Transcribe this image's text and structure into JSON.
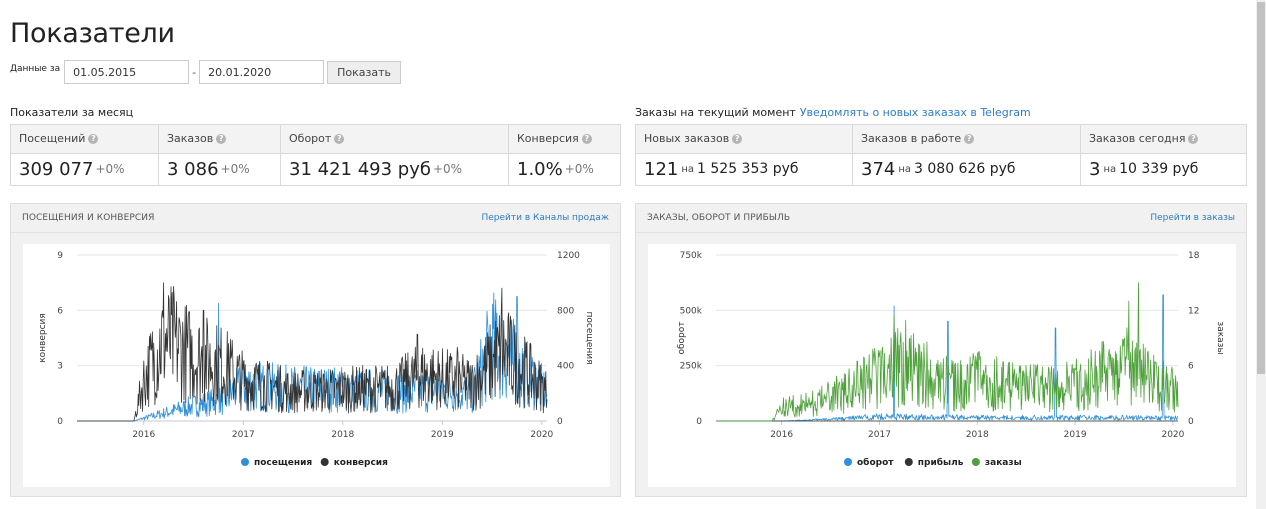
{
  "page": {
    "title": "Показатели"
  },
  "filter": {
    "label": "Данные за",
    "from": "01.05.2015",
    "separator": "-",
    "to": "20.01.2020",
    "button": "Показать"
  },
  "monthly": {
    "title": "Показатели за месяц",
    "items": [
      {
        "label": "Посещений",
        "value": "309 077",
        "delta": "+0%"
      },
      {
        "label": "Заказов",
        "value": "3 086",
        "delta": "+0%"
      },
      {
        "label": "Оборот",
        "value": "31 421 493 руб",
        "delta": "+0%"
      },
      {
        "label": "Конверсия",
        "value": "1.0%",
        "delta": "+0%"
      }
    ]
  },
  "current": {
    "title": "Заказы на текущий момент",
    "link": "Уведомлять о новых заказах в Telegram",
    "items": [
      {
        "label": "Новых заказов",
        "count": "121",
        "on": "на",
        "sum": "1 525 353 руб"
      },
      {
        "label": "Заказов в работе",
        "count": "374",
        "on": "на",
        "sum": "3 080 626 руб"
      },
      {
        "label": "Заказов сегодня",
        "count": "3",
        "on": "на",
        "sum": "10 339 руб"
      }
    ]
  },
  "panels": [
    {
      "title": "ПОСЕЩЕНИЯ И КОНВЕРСИЯ",
      "link": "Перейти в Каналы продаж"
    },
    {
      "title": "ЗАКАЗЫ, ОБОРОТ И ПРИБЫЛЬ",
      "link": "Перейти в заказы"
    }
  ],
  "chart_data": [
    {
      "type": "line",
      "x_range": [
        "2015-05-01",
        "2020-01-20"
      ],
      "x_ticks": [
        "2016",
        "2017",
        "2018",
        "2019",
        "2020"
      ],
      "y_left": {
        "label": "конверсия",
        "range": [
          0,
          9
        ],
        "ticks": [
          "0",
          "3",
          "6",
          "9"
        ]
      },
      "y_right": {
        "label": "посещения",
        "range": [
          0,
          1200
        ],
        "ticks": [
          "0",
          "400",
          "800",
          "1200"
        ]
      },
      "legend_position": "bottom",
      "series": [
        {
          "name": "посещения",
          "axis": "right",
          "color": "#2f8fd8",
          "envelope": [
            [
              2015.33,
              0
            ],
            [
              2015.9,
              0
            ],
            [
              2016.0,
              20
            ],
            [
              2016.5,
              110
            ],
            [
              2016.8,
              150
            ],
            [
              2017.0,
              260
            ],
            [
              2017.5,
              230
            ],
            [
              2018.0,
              230
            ],
            [
              2018.5,
              210
            ],
            [
              2019.0,
              220
            ],
            [
              2019.3,
              200
            ],
            [
              2019.5,
              550
            ],
            [
              2019.8,
              380
            ],
            [
              2020.05,
              200
            ]
          ],
          "peaks": [
            [
              2016.75,
              850
            ],
            [
              2019.55,
              780
            ],
            [
              2019.75,
              900
            ],
            [
              2017.15,
              300
            ],
            [
              2018.05,
              320
            ]
          ]
        },
        {
          "name": "конверсия",
          "axis": "left",
          "color": "#333333",
          "envelope": [
            [
              2015.33,
              0
            ],
            [
              2015.9,
              0
            ],
            [
              2016.0,
              2.2
            ],
            [
              2016.2,
              4.5
            ],
            [
              2016.5,
              3.5
            ],
            [
              2016.8,
              3.0
            ],
            [
              2017.0,
              2.2
            ],
            [
              2017.5,
              1.6
            ],
            [
              2018.0,
              1.7
            ],
            [
              2018.5,
              1.8
            ],
            [
              2018.8,
              2.5
            ],
            [
              2019.3,
              2.0
            ],
            [
              2019.6,
              3.8
            ],
            [
              2020.05,
              1.6
            ]
          ],
          "peaks": [
            [
              2016.2,
              7.5
            ],
            [
              2016.3,
              7.3
            ],
            [
              2016.6,
              6.0
            ],
            [
              2016.85,
              4.2
            ],
            [
              2018.75,
              4.7
            ],
            [
              2019.6,
              7.2
            ],
            [
              2019.15,
              4.0
            ]
          ]
        }
      ]
    },
    {
      "type": "line",
      "x_range": [
        "2015-05-01",
        "2020-01-20"
      ],
      "x_ticks": [
        "2016",
        "2017",
        "2018",
        "2019",
        "2020"
      ],
      "y_left": {
        "label": "оборот",
        "range": [
          0,
          750000
        ],
        "ticks": [
          "0",
          "250k",
          "500k",
          "750k"
        ]
      },
      "y_right": {
        "label": "заказы",
        "range": [
          0,
          18
        ],
        "ticks": [
          "0",
          "6",
          "12",
          "18"
        ]
      },
      "legend_position": "bottom",
      "series": [
        {
          "name": "оборот",
          "axis": "left",
          "color": "#2f8fd8",
          "envelope": [
            [
              2015.33,
              0
            ],
            [
              2016.0,
              0
            ],
            [
              2016.5,
              8000
            ],
            [
              2017.0,
              20000
            ],
            [
              2018.0,
              15000
            ],
            [
              2019.0,
              15000
            ],
            [
              2020.05,
              15000
            ]
          ],
          "peaks": [
            [
              2017.15,
              520000
            ],
            [
              2017.7,
              450000
            ],
            [
              2018.8,
              420000
            ],
            [
              2019.9,
              570000
            ]
          ]
        },
        {
          "name": "прибыль",
          "axis": "left",
          "color": "#333333",
          "envelope": [
            [
              2015.33,
              0
            ],
            [
              2020.05,
              0
            ]
          ],
          "peaks": []
        },
        {
          "name": "заказы",
          "axis": "right",
          "color": "#4ea13a",
          "envelope": [
            [
              2015.33,
              0
            ],
            [
              2015.9,
              0
            ],
            [
              2016.0,
              1.5
            ],
            [
              2016.3,
              1.8
            ],
            [
              2016.6,
              3.0
            ],
            [
              2017.0,
              5.0
            ],
            [
              2017.3,
              6.5
            ],
            [
              2017.6,
              4.0
            ],
            [
              2018.0,
              4.5
            ],
            [
              2018.5,
              3.5
            ],
            [
              2019.0,
              3.8
            ],
            [
              2019.5,
              6.0
            ],
            [
              2019.7,
              5.0
            ],
            [
              2020.05,
              3.0
            ]
          ],
          "peaks": [
            [
              2017.15,
              11.5
            ],
            [
              2017.35,
              9.5
            ],
            [
              2019.65,
              15.0
            ],
            [
              2019.55,
              13.0
            ],
            [
              2018.2,
              7.0
            ]
          ]
        }
      ]
    }
  ]
}
